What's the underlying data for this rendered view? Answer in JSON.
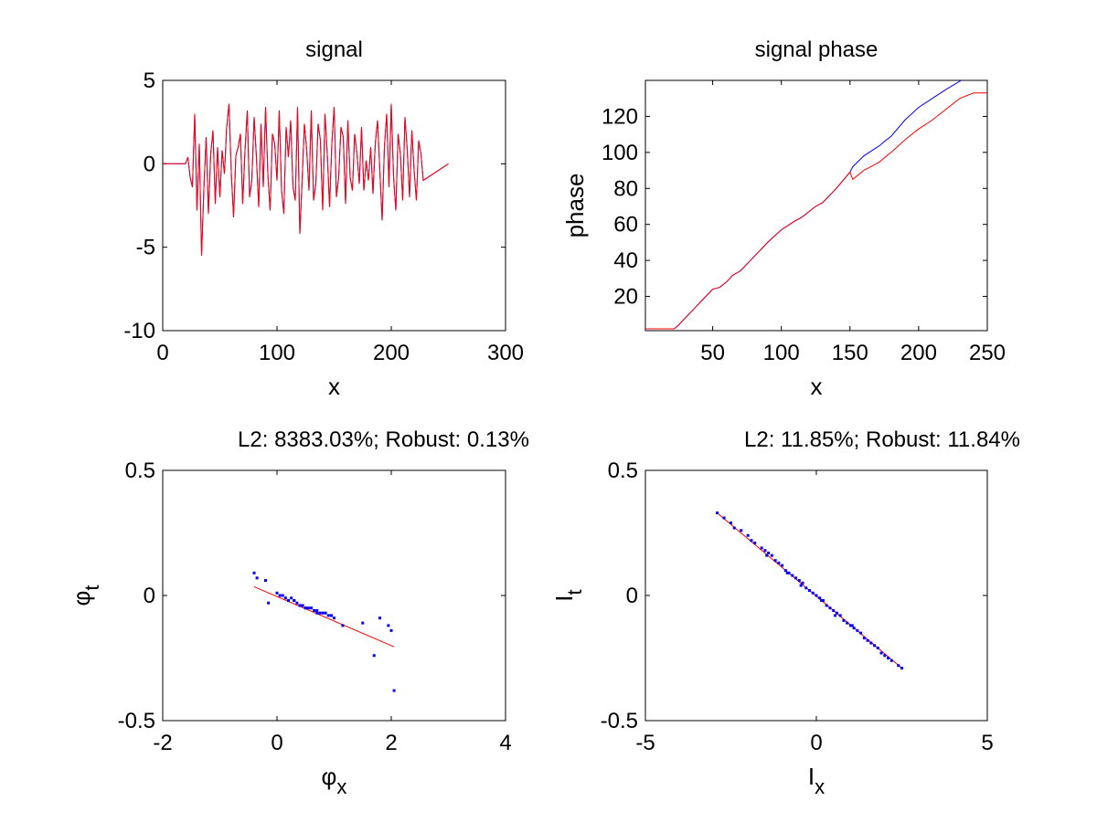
{
  "chart_data": [
    {
      "type": "line",
      "title": "signal",
      "xlabel": "x",
      "ylabel": "",
      "xlim": [
        0,
        300
      ],
      "ylim": [
        -10,
        5
      ],
      "xticks": [
        0,
        100,
        200,
        300
      ],
      "yticks": [
        -10,
        -5,
        0,
        5
      ],
      "grid": false,
      "series": [
        {
          "color": "#0000ff",
          "x": [
            0,
            20,
            22,
            24,
            26,
            28,
            30,
            32,
            34,
            36,
            38,
            40,
            42,
            44,
            46,
            48,
            50,
            52,
            54,
            56,
            58,
            60,
            62,
            64,
            66,
            68,
            70,
            72,
            74,
            76,
            78,
            80,
            82,
            84,
            86,
            88,
            90,
            92,
            94,
            96,
            98,
            100,
            102,
            104,
            106,
            108,
            110,
            112,
            114,
            116,
            118,
            120,
            122,
            124,
            126,
            128,
            130,
            132,
            134,
            136,
            138,
            140,
            142,
            144,
            146,
            148,
            150,
            152,
            154,
            156,
            158,
            160,
            162,
            164,
            166,
            168,
            170,
            172,
            174,
            176,
            178,
            180,
            182,
            184,
            186,
            188,
            190,
            192,
            194,
            196,
            198,
            200,
            202,
            204,
            206,
            208,
            210,
            212,
            214,
            216,
            218,
            220,
            222,
            224,
            226,
            228,
            250
          ],
          "y": [
            0,
            0,
            0.4,
            -0.8,
            -1.4,
            3.0,
            -2.8,
            1.2,
            -5.5,
            -1.5,
            1.6,
            -3.0,
            0.6,
            2.0,
            -2.4,
            1.0,
            -2.0,
            0.8,
            -0.6,
            2.2,
            3.6,
            -0.5,
            -3.2,
            0.5,
            1.0,
            1.8,
            -2.4,
            0.8,
            3.2,
            -2.0,
            -1.0,
            2.8,
            0.4,
            -2.6,
            2.4,
            -1.4,
            3.4,
            -0.6,
            -2.8,
            1.8,
            1.2,
            -1.0,
            3.2,
            -1.6,
            -3.0,
            2.2,
            0.4,
            2.6,
            -1.4,
            -2.2,
            3.4,
            -4.2,
            -1.0,
            2.4,
            0.8,
            -1.6,
            3.2,
            -2.2,
            -1.2,
            2.4,
            1.4,
            -2.8,
            3.0,
            0.6,
            -2.6,
            1.2,
            3.4,
            -2.0,
            -0.8,
            2.2,
            1.6,
            -2.4,
            2.6,
            -0.8,
            -1.6,
            1.8,
            0.6,
            -1.2,
            2.2,
            -1.6,
            0.2,
            -1.0,
            1.0,
            -1.8,
            1.2,
            2.6,
            -0.4,
            -3.4,
            1.0,
            3.0,
            -1.4,
            3.6,
            -0.8,
            -2.8,
            1.8,
            0.6,
            -2.2,
            2.8,
            0.8,
            -2.0,
            2.0,
            -0.4,
            -2.2,
            1.4,
            0.6,
            -1.0,
            0
          ]
        },
        {
          "color": "#ff0000",
          "x": [
            0,
            20,
            22,
            24,
            26,
            28,
            30,
            32,
            34,
            36,
            38,
            40,
            42,
            44,
            46,
            48,
            50,
            52,
            54,
            56,
            58,
            60,
            62,
            64,
            66,
            68,
            70,
            72,
            74,
            76,
            78,
            80,
            82,
            84,
            86,
            88,
            90,
            92,
            94,
            96,
            98,
            100,
            102,
            104,
            106,
            108,
            110,
            112,
            114,
            116,
            118,
            120,
            122,
            124,
            126,
            128,
            130,
            132,
            134,
            136,
            138,
            140,
            142,
            144,
            146,
            148,
            150,
            152,
            154,
            156,
            158,
            160,
            162,
            164,
            166,
            168,
            170,
            172,
            174,
            176,
            178,
            180,
            182,
            184,
            186,
            188,
            190,
            192,
            194,
            196,
            198,
            200,
            202,
            204,
            206,
            208,
            210,
            212,
            214,
            216,
            218,
            220,
            222,
            224,
            226,
            228,
            250
          ],
          "y": [
            0,
            0,
            0.4,
            -0.8,
            -1.4,
            3.0,
            -2.8,
            1.2,
            -5.5,
            -1.5,
            1.6,
            -3.0,
            0.6,
            2.0,
            -2.4,
            1.0,
            -2.0,
            0.8,
            -0.6,
            2.2,
            3.6,
            -0.5,
            -3.2,
            0.5,
            1.0,
            1.8,
            -2.4,
            0.8,
            3.2,
            -2.0,
            -1.0,
            2.8,
            0.4,
            -2.6,
            2.4,
            -1.4,
            3.4,
            -0.6,
            -2.8,
            1.8,
            1.2,
            -1.0,
            3.2,
            -1.6,
            -3.0,
            2.2,
            0.4,
            2.6,
            -1.4,
            -2.2,
            3.4,
            -4.2,
            -1.0,
            2.4,
            0.8,
            -1.6,
            3.2,
            -2.2,
            -1.2,
            2.4,
            1.4,
            -2.8,
            3.0,
            0.6,
            -2.6,
            1.2,
            3.4,
            -2.0,
            -0.8,
            2.2,
            1.6,
            -2.4,
            2.6,
            -0.8,
            -1.6,
            1.8,
            0.6,
            -1.2,
            2.2,
            -1.6,
            0.2,
            -1.0,
            1.0,
            -1.8,
            1.2,
            2.6,
            -0.4,
            -3.4,
            1.0,
            3.0,
            -1.4,
            3.6,
            -0.8,
            -2.8,
            1.8,
            0.6,
            -2.2,
            2.8,
            0.8,
            -2.0,
            2.0,
            -0.4,
            -2.2,
            1.4,
            0.6,
            -1.0,
            0
          ]
        }
      ]
    },
    {
      "type": "line",
      "title": "signal phase",
      "xlabel": "x",
      "ylabel": "phase",
      "xlim": [
        1,
        250
      ],
      "ylim": [
        1,
        140
      ],
      "xticks": [
        50,
        100,
        150,
        200,
        250
      ],
      "yticks": [
        20,
        40,
        60,
        80,
        100,
        120
      ],
      "grid": false,
      "series": [
        {
          "color": "#0000ff",
          "x": [
            1,
            22,
            25,
            35,
            45,
            50,
            55,
            60,
            65,
            70,
            80,
            90,
            100,
            110,
            115,
            120,
            125,
            130,
            140,
            150,
            152,
            160,
            170,
            172,
            175,
            180,
            190,
            200,
            210,
            220,
            231
          ],
          "y": [
            2,
            2,
            4,
            12,
            20,
            24,
            25,
            28,
            32,
            34,
            42,
            50,
            57,
            62,
            64,
            67,
            70,
            72,
            80,
            89,
            92,
            98,
            103,
            104,
            106,
            109,
            118,
            125,
            130,
            135,
            140
          ]
        },
        {
          "color": "#ff0000",
          "x": [
            1,
            22,
            25,
            35,
            45,
            50,
            55,
            60,
            65,
            70,
            80,
            90,
            100,
            110,
            115,
            120,
            125,
            130,
            140,
            150,
            152,
            160,
            170,
            172,
            175,
            180,
            190,
            200,
            210,
            220,
            230,
            240,
            250
          ],
          "y": [
            2,
            2,
            4,
            12,
            20,
            24,
            25,
            28,
            32,
            34,
            42,
            50,
            57,
            62,
            64,
            67,
            70,
            72,
            80,
            89,
            85,
            90,
            94,
            95,
            97,
            100,
            107,
            113,
            118,
            124,
            130,
            133,
            133
          ]
        }
      ]
    },
    {
      "type": "scatter",
      "title": "L2: 8383.03%; Robust: 0.13%",
      "xlabel": "φ_x",
      "ylabel": "φ_t",
      "xlim": [
        -2,
        4
      ],
      "ylim": [
        -0.5,
        0.5
      ],
      "xticks": [
        -2,
        0,
        2,
        4
      ],
      "yticks": [
        -0.5,
        0,
        0.5
      ],
      "grid": false,
      "points": {
        "color": "#0000ff",
        "x": [
          -0.4,
          -0.35,
          -0.2,
          -0.15,
          0.05,
          0.1,
          0.15,
          0.2,
          0.25,
          0.3,
          0.35,
          0.4,
          0.45,
          0.5,
          0.55,
          0.6,
          0.65,
          0.7,
          0.75,
          0.8,
          0.85,
          0.9,
          0.95,
          1.0,
          0.3,
          0.5,
          0.7,
          0.95,
          1.15,
          1.5,
          1.7,
          1.8,
          1.95,
          2.0,
          2.05,
          0.0,
          0.2
        ],
        "y": [
          0.09,
          0.07,
          0.06,
          -0.03,
          0.0,
          0.0,
          -0.01,
          -0.02,
          -0.01,
          -0.02,
          -0.03,
          -0.04,
          -0.04,
          -0.05,
          -0.05,
          -0.05,
          -0.06,
          -0.06,
          -0.07,
          -0.07,
          -0.07,
          -0.08,
          -0.08,
          -0.09,
          -0.02,
          -0.05,
          -0.07,
          -0.08,
          -0.12,
          -0.11,
          -0.24,
          -0.09,
          -0.12,
          -0.14,
          -0.38,
          0.01,
          -0.02
        ]
      },
      "fit": {
        "color": "#ff0000",
        "x": [
          -0.4,
          2.05
        ],
        "y": [
          0.035,
          -0.205
        ]
      }
    },
    {
      "type": "scatter",
      "title": "L2: 11.85%; Robust: 11.84%",
      "xlabel": "I_x",
      "ylabel": "I_t",
      "xlim": [
        -5,
        5
      ],
      "ylim": [
        -0.5,
        0.5
      ],
      "xticks": [
        -5,
        0,
        5
      ],
      "yticks": [
        -0.5,
        0,
        0.5
      ],
      "grid": false,
      "points": {
        "color": "#0000ff",
        "x": [
          -2.9,
          -2.7,
          -2.5,
          -2.4,
          -2.2,
          -2.0,
          -1.9,
          -1.8,
          -1.6,
          -1.5,
          -1.4,
          -1.3,
          -1.2,
          -1.1,
          -1.0,
          -0.9,
          -0.8,
          -0.7,
          -0.6,
          -0.5,
          -0.4,
          -0.3,
          -0.2,
          -0.1,
          0.0,
          0.1,
          0.2,
          0.3,
          0.4,
          0.5,
          0.6,
          0.7,
          0.8,
          0.9,
          1.0,
          1.1,
          1.2,
          1.3,
          1.4,
          1.5,
          1.6,
          1.7,
          1.8,
          1.9,
          2.0,
          2.1,
          2.2,
          2.4,
          2.5,
          -1.45,
          -0.85,
          -0.45,
          0.15,
          0.55,
          1.05
        ],
        "y": [
          0.33,
          0.31,
          0.29,
          0.27,
          0.26,
          0.24,
          0.22,
          0.21,
          0.19,
          0.18,
          0.17,
          0.16,
          0.14,
          0.13,
          0.12,
          0.1,
          0.09,
          0.08,
          0.07,
          0.06,
          0.05,
          0.03,
          0.02,
          0.01,
          0.0,
          -0.01,
          -0.02,
          -0.04,
          -0.05,
          -0.06,
          -0.07,
          -0.08,
          -0.1,
          -0.11,
          -0.12,
          -0.13,
          -0.14,
          -0.15,
          -0.17,
          -0.18,
          -0.19,
          -0.2,
          -0.21,
          -0.23,
          -0.24,
          -0.25,
          -0.26,
          -0.28,
          -0.29,
          0.16,
          0.09,
          0.04,
          -0.02,
          -0.08,
          -0.12
        ]
      },
      "fit": {
        "color": "#ff0000",
        "x": [
          -2.9,
          2.5
        ],
        "y": [
          0.33,
          -0.29
        ]
      }
    }
  ]
}
